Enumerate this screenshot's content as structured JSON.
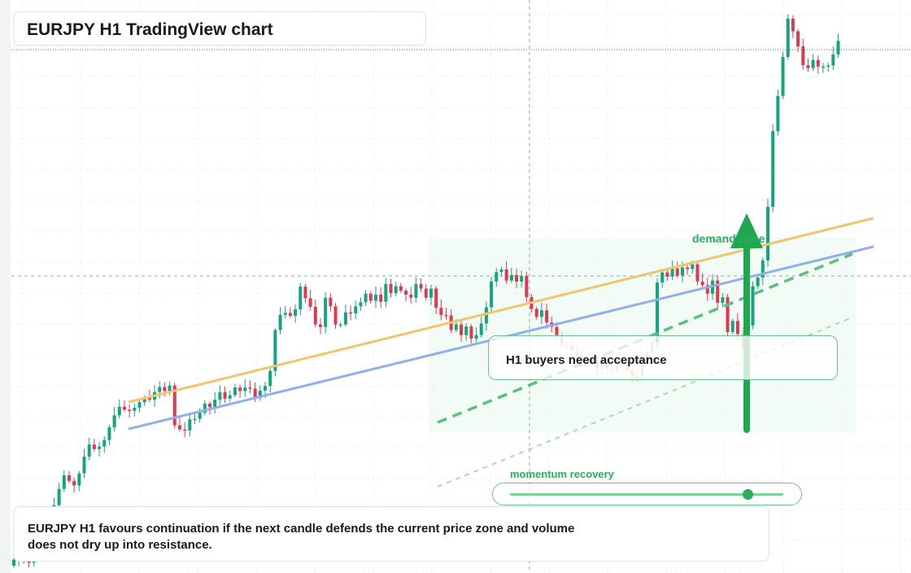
{
  "title": "EURJPY H1 TradingView chart",
  "callout": "H1 buyers need acceptance",
  "zone_label": "demand zone",
  "momentum": {
    "label": "momentum recovery",
    "level": 0.87
  },
  "caption": "EURJPY H1 favours continuation if the next candle defends the current price zone and volume does not dry up into resistance.",
  "colors": {
    "up": "#16a37f",
    "down": "#e0394f",
    "trend_upper": "#f2c46d",
    "trend_lower": "#8fb0ea",
    "accent": "#27ae60"
  },
  "chart_data": {
    "type": "candlestick",
    "symbol": "EURJPY",
    "timeframe": "H1",
    "closes": [
      1.2,
      2.8,
      1.5,
      0.6,
      2.4,
      5.1,
      7.3,
      9.8,
      12.0,
      15.2,
      17.9,
      16.8,
      15.9,
      18.3,
      21.6,
      24.0,
      23.1,
      23.6,
      24.9,
      27.4,
      29.8,
      31.5,
      30.9,
      30.7,
      31.3,
      32.4,
      33.3,
      32.9,
      34.4,
      35.4,
      34.6,
      35.7,
      27.8,
      27.0,
      26.8,
      29.0,
      29.1,
      30.3,
      32.1,
      31.4,
      32.9,
      34.4,
      33.1,
      33.8,
      35.3,
      34.6,
      35.3,
      35.1,
      33.2,
      34.7,
      35.6,
      38.6,
      46.7,
      49.7,
      50.1,
      49.5,
      50.8,
      55.3,
      53.0,
      51.3,
      47.8,
      47.3,
      53.1,
      51.4,
      47.8,
      47.8,
      50.2,
      50.0,
      51.4,
      52.2,
      53.9,
      52.5,
      53.7,
      52.3,
      55.8,
      54.0,
      55.4,
      54.5,
      53.7,
      53.1,
      55.8,
      54.9,
      53.1,
      54.9,
      51.1,
      49.7,
      49.6,
      46.7,
      47.8,
      45.7,
      47.4,
      45.0,
      45.7,
      48.0,
      51.2,
      56.3,
      58.2,
      58.7,
      56.5,
      57.6,
      56.3,
      57.4,
      53.2,
      50.9,
      49.3,
      50.6,
      48.2,
      47.3,
      45.7,
      43.5,
      43.4,
      42.5,
      41.7,
      40.3,
      40.2,
      40.8,
      39.0,
      40.6,
      38.9,
      38.8,
      40.8,
      39.9,
      38.7,
      37.5,
      37.4,
      40.4,
      42.3,
      44.3,
      56.1,
      58.1,
      57.3,
      58.9,
      57.5,
      59.1,
      58.8,
      59.7,
      56.3,
      55.6,
      53.9,
      56.5,
      52.1,
      53.2,
      46.3,
      48.5,
      45.9,
      43.2,
      47.6,
      55.4,
      57.1,
      60.5,
      71.1,
      86.1,
      93.1,
      100.8,
      108.4,
      105.9,
      102.9,
      99.2,
      98.6,
      100.2,
      98.9,
      98.9,
      99.1,
      101.3,
      104.0
    ],
    "x_labels": [],
    "y_labels": [],
    "overlays": [
      "rising trendline (upper)",
      "rising trendline (lower)",
      "dashed channel",
      "upward arrow"
    ]
  }
}
